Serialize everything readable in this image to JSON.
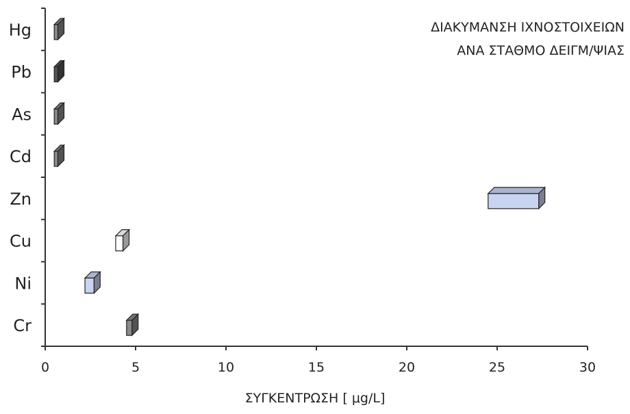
{
  "chart_data": {
    "type": "bar",
    "orientation": "horizontal-floating-range",
    "title_lines": [
      "ΔΙΑΚΥΜΑΝΣΗ ΙΧΝΟΣΤΟΙΧΕΙΩΝ",
      "ΑΝΑ ΣΤΑΘΜΟ ΔΕΙΓΜ/ΨΙΑΣ"
    ],
    "xlabel": "ΣΥΓΚΕΝΤΡΩΣΗ [ μg/L]",
    "ylabel": "",
    "xlim": [
      0,
      30
    ],
    "xticks": [
      0,
      5,
      10,
      15,
      20,
      25,
      30
    ],
    "categories": [
      "Hg",
      "Pb",
      "As",
      "Cd",
      "Zn",
      "Cu",
      "Ni",
      "Cr"
    ],
    "ranges": [
      {
        "category": "Hg",
        "min": 0.5,
        "max": 0.7,
        "color": "#8a8a8a"
      },
      {
        "category": "Pb",
        "min": 0.5,
        "max": 0.7,
        "color": "#555555"
      },
      {
        "category": "As",
        "min": 0.5,
        "max": 0.7,
        "color": "#8a8a8a"
      },
      {
        "category": "Cd",
        "min": 0.5,
        "max": 0.7,
        "color": "#8a8a8a"
      },
      {
        "category": "Zn",
        "min": 24.5,
        "max": 27.3,
        "color": "#c9d4f0"
      },
      {
        "category": "Cu",
        "min": 3.9,
        "max": 4.3,
        "color": "#ffffff"
      },
      {
        "category": "Ni",
        "min": 2.2,
        "max": 2.7,
        "color": "#c9d4f0"
      },
      {
        "category": "Cr",
        "min": 4.5,
        "max": 4.8,
        "color": "#8a8a8a"
      }
    ],
    "grid": false,
    "legend": "none"
  }
}
